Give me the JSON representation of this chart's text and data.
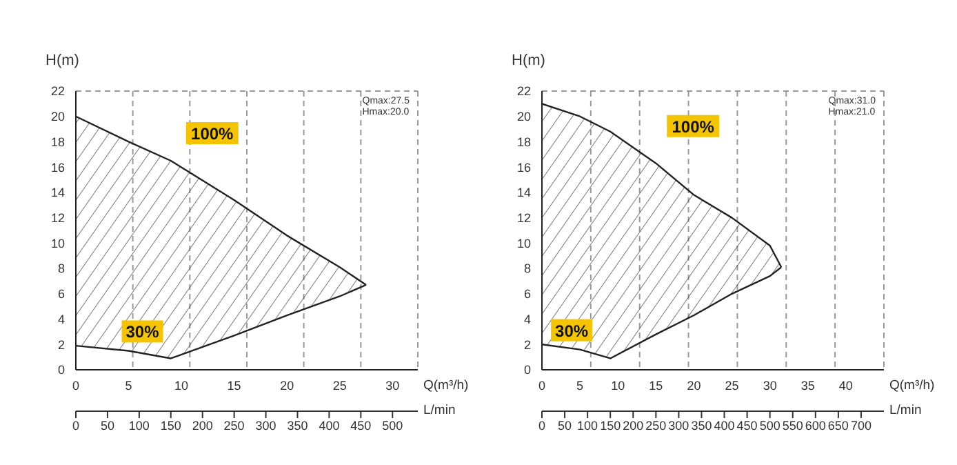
{
  "chart_data": [
    {
      "type": "line",
      "xlabel": "Q(m³/h)",
      "ylabel": "H(m)",
      "x2label": "L/min",
      "x": [
        0,
        5,
        9,
        15,
        20,
        25,
        27.5
      ],
      "series": [
        {
          "name": "100%",
          "color": "#222222",
          "values": [
            20,
            18,
            16.5,
            13.4,
            10.6,
            8.1,
            6.7
          ],
          "lower": [
            1.9,
            1.5,
            0.9,
            2.7,
            4.3,
            5.8,
            6.7
          ],
          "upper": [
            20,
            18,
            16.5,
            13.4,
            10.6,
            8.1,
            6.7
          ]
        },
        {
          "name": "30%",
          "color": "#222222",
          "values": [
            1.9,
            1.5,
            0.9,
            2.7,
            4.3,
            5.8,
            6.7
          ]
        }
      ],
      "xlim": [
        0,
        32.4
      ],
      "xticks": [
        0,
        5,
        10,
        15,
        20,
        25,
        30
      ],
      "ylim": [
        0,
        22
      ],
      "yticks": [
        0,
        2,
        4,
        6,
        8,
        10,
        12,
        14,
        16,
        18,
        20,
        22
      ],
      "x2lim": [
        0,
        540
      ],
      "x2ticks": [
        0,
        50,
        100,
        150,
        200,
        250,
        300,
        350,
        400,
        450,
        500
      ],
      "grid": true,
      "marker": "none",
      "line_style": "solid",
      "annotations": [
        "Qmax:27.5",
        "Hmax:20.0"
      ]
    },
    {
      "type": "line",
      "xlabel": "Q(m³/h)",
      "ylabel": "H(m)",
      "x2label": "L/min",
      "x": [
        0,
        5,
        9,
        15,
        20,
        25,
        30,
        31.5
      ],
      "series": [
        {
          "name": "100%",
          "color": "#222222",
          "values": [
            21,
            20,
            18.8,
            16.3,
            13.8,
            12,
            9.8,
            8.1
          ],
          "lower": [
            2,
            1.6,
            0.9,
            2.8,
            4.3,
            6,
            7.4,
            8.1
          ],
          "upper": [
            21,
            20,
            18.8,
            16.3,
            13.8,
            12,
            9.8,
            8.1
          ]
        },
        {
          "name": "30%",
          "color": "#222222",
          "values": [
            2,
            1.6,
            0.9,
            2.8,
            4.3,
            6,
            7.4,
            8.1
          ]
        }
      ],
      "xlim": [
        0,
        45
      ],
      "xticks": [
        0,
        5,
        10,
        15,
        20,
        25,
        30,
        35,
        40
      ],
      "ylim": [
        0,
        22
      ],
      "yticks": [
        0,
        2,
        4,
        6,
        8,
        10,
        12,
        14,
        16,
        18,
        20,
        22
      ],
      "x2lim": [
        0,
        750
      ],
      "x2ticks": [
        0,
        50,
        100,
        150,
        200,
        250,
        300,
        350,
        400,
        450,
        500,
        550,
        600,
        650,
        700
      ],
      "grid": true,
      "marker": "none",
      "line_style": "solid",
      "annotations": [
        "Qmax:31.0",
        "Hmax:21.0"
      ]
    }
  ]
}
